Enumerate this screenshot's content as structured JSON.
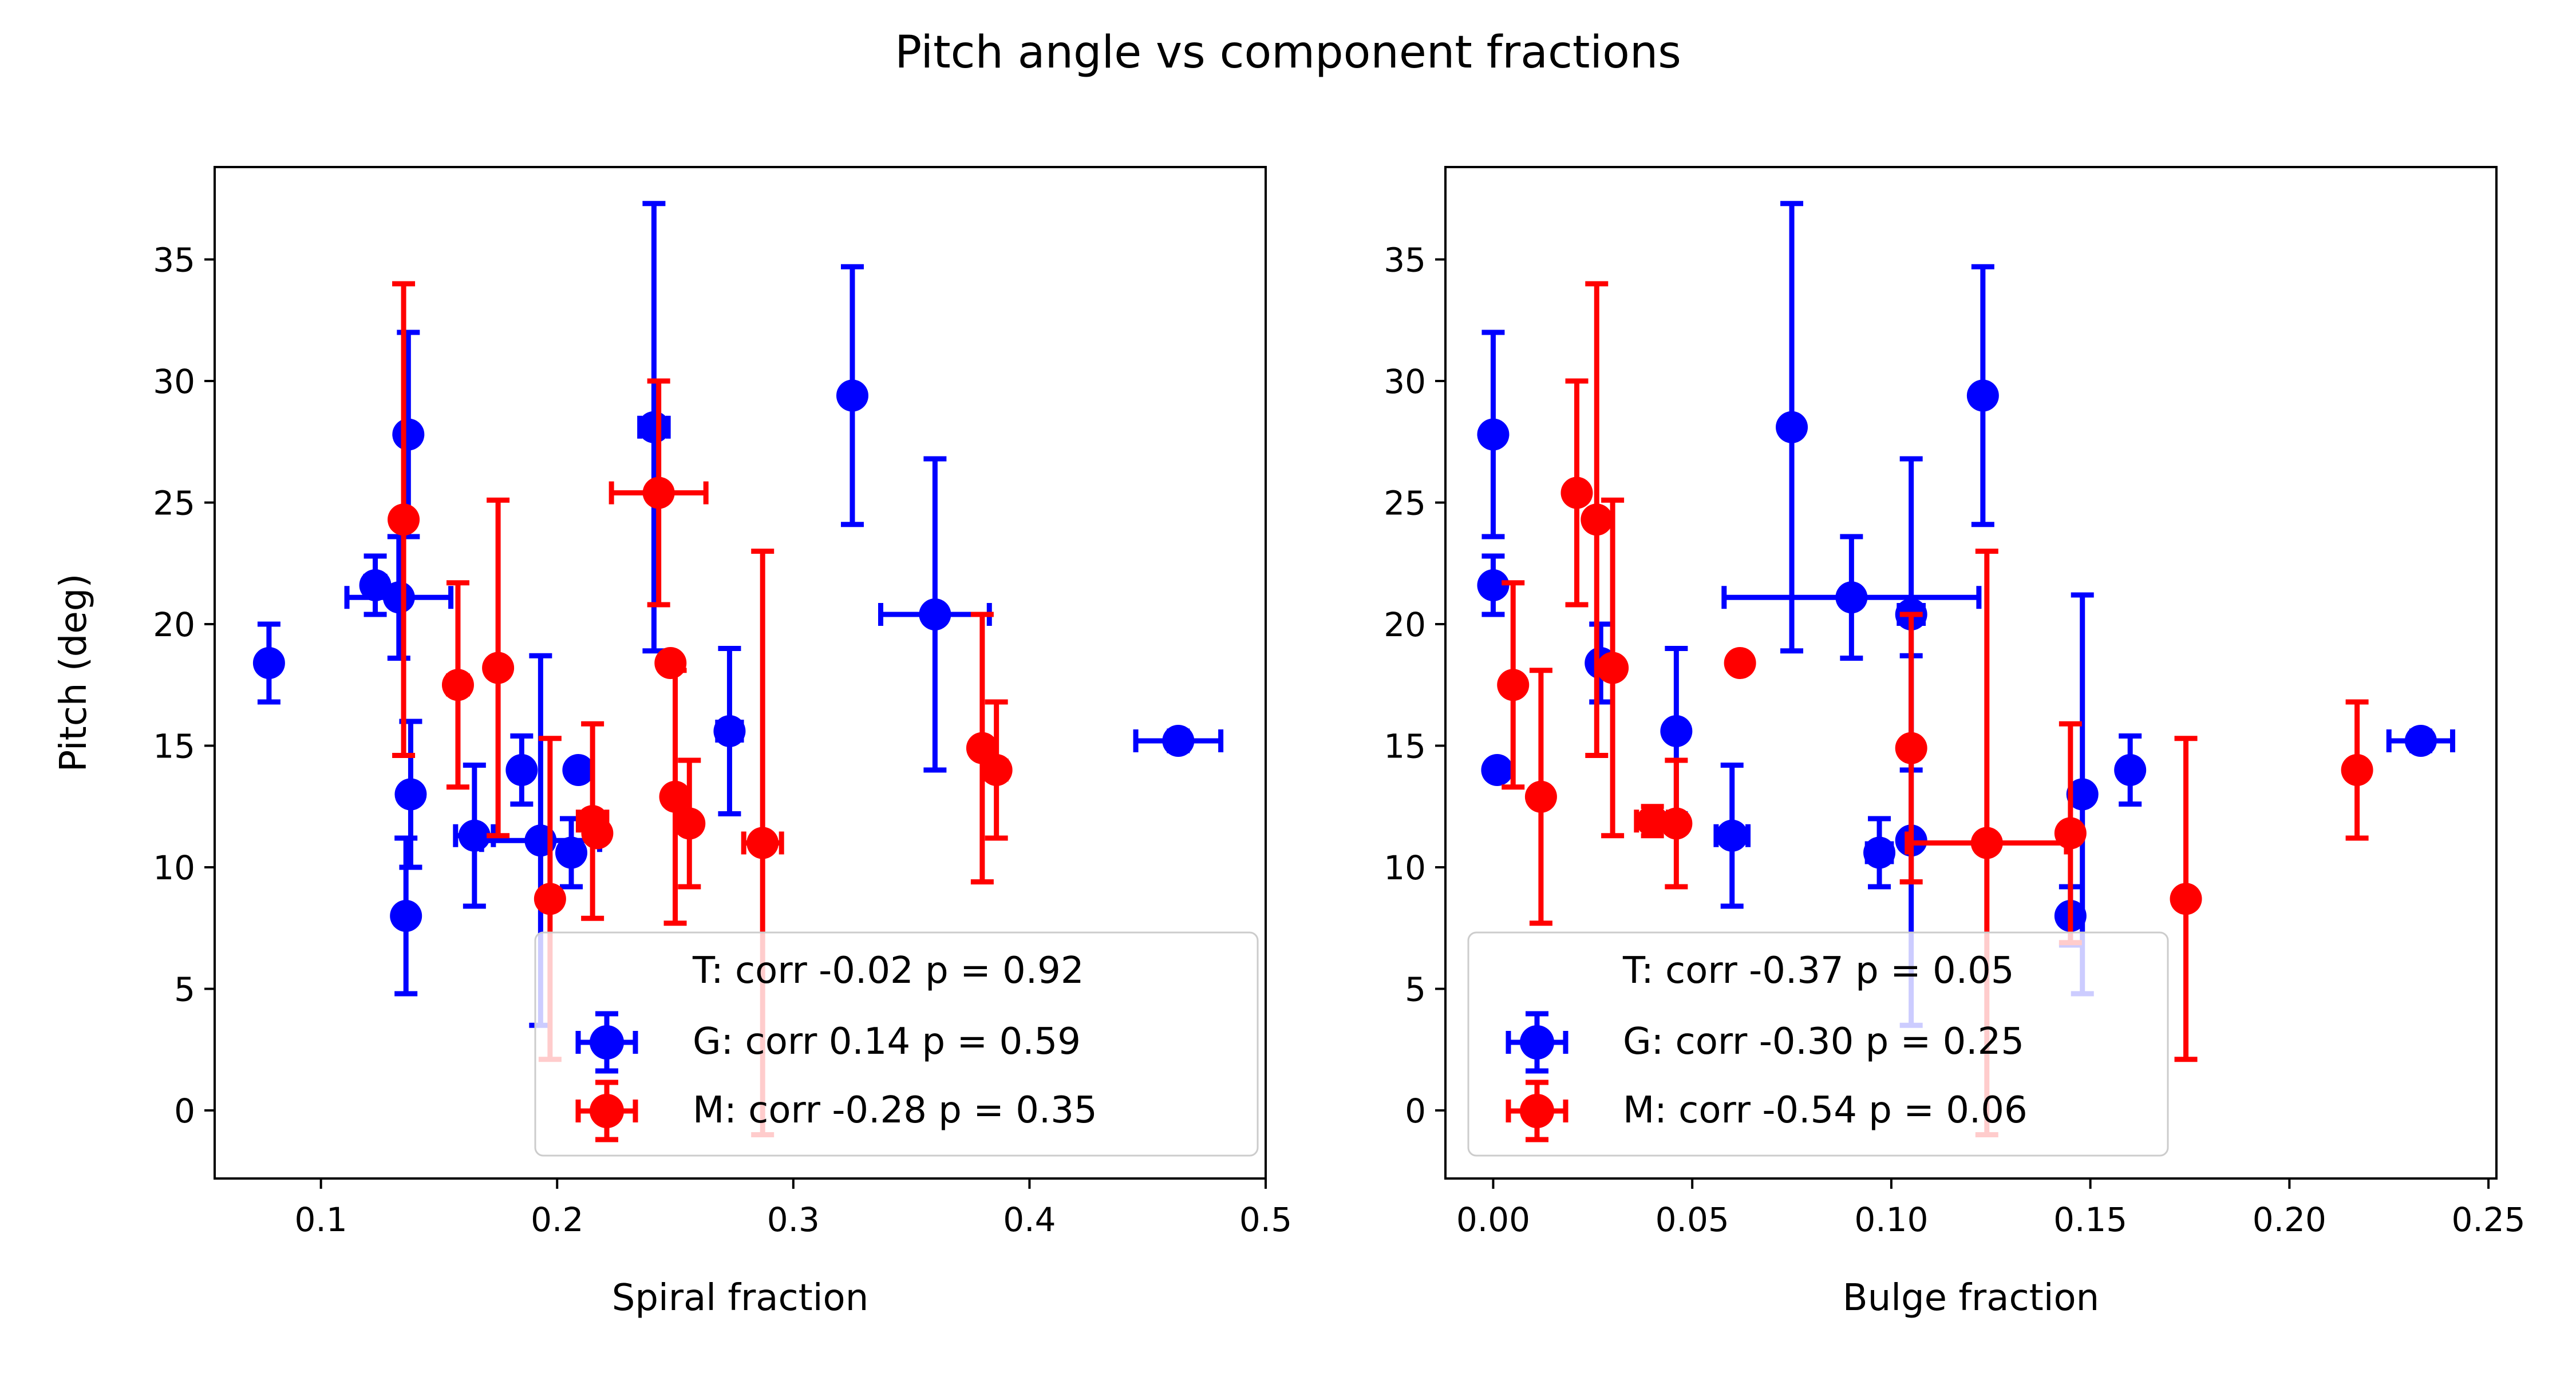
{
  "chart_data": {
    "suptitle": "Pitch angle vs component fractions",
    "panels": [
      {
        "type": "scatter",
        "xlabel": "Spiral fraction",
        "ylabel": "Pitch (deg)",
        "xlim": [
          0.055,
          0.5
        ],
        "ylim": [
          -2.8,
          38.8
        ],
        "xticks": [
          0.1,
          0.2,
          0.3,
          0.4,
          0.5
        ],
        "xtick_labels": [
          "0.1",
          "0.2",
          "0.3",
          "0.4",
          "0.5"
        ],
        "yticks": [
          0,
          5,
          10,
          15,
          20,
          25,
          30,
          35
        ],
        "ytick_labels": [
          "0",
          "5",
          "10",
          "15",
          "20",
          "25",
          "30",
          "35"
        ],
        "legend": {
          "placement": "lower-right",
          "entries": [
            {
              "label": "T: corr -0.02 p = 0.92",
              "marker": "none"
            },
            {
              "label": "G: corr 0.14 p = 0.59",
              "color": "#0000ff"
            },
            {
              "label": "M: corr -0.28 p = 0.35",
              "color": "#ff0000"
            }
          ]
        },
        "series": [
          {
            "name": "G",
            "color": "#0000ff",
            "points": [
              {
                "x": 0.078,
                "y": 18.4,
                "xerr": 0.0,
                "yerr": 1.6
              },
              {
                "x": 0.123,
                "y": 21.6,
                "xerr": 0.004,
                "yerr": 1.2
              },
              {
                "x": 0.133,
                "y": 21.1,
                "xerr": 0.022,
                "yerr": 2.5
              },
              {
                "x": 0.137,
                "y": 27.8,
                "xerr": 0.003,
                "yerr": 4.2
              },
              {
                "x": 0.138,
                "y": 13.0,
                "xerr": 0.0,
                "yerr": 3.0
              },
              {
                "x": 0.136,
                "y": 8.0,
                "xerr": 0.0,
                "yerr": 3.2
              },
              {
                "x": 0.165,
                "y": 11.3,
                "xerr": 0.008,
                "yerr": 2.9
              },
              {
                "x": 0.185,
                "y": 14.0,
                "xerr": 0.0,
                "yerr": 1.4
              },
              {
                "x": 0.193,
                "y": 11.1,
                "xerr": 0.025,
                "yerr": 7.6
              },
              {
                "x": 0.206,
                "y": 10.6,
                "xerr": 0.0,
                "yerr": 1.4
              },
              {
                "x": 0.209,
                "y": 14.0,
                "xerr": 0.0,
                "yerr": 0.0
              },
              {
                "x": 0.241,
                "y": 28.1,
                "xerr": 0.006,
                "yerr": 9.2
              },
              {
                "x": 0.273,
                "y": 15.6,
                "xerr": 0.005,
                "yerr": 3.4
              },
              {
                "x": 0.325,
                "y": 29.4,
                "xerr": 0.0,
                "yerr": 5.3
              },
              {
                "x": 0.36,
                "y": 20.4,
                "xerr": 0.023,
                "yerr": 6.4
              },
              {
                "x": 0.463,
                "y": 15.2,
                "xerr": 0.018,
                "yerr": 0.4
              }
            ]
          },
          {
            "name": "M",
            "color": "#ff0000",
            "points": [
              {
                "x": 0.135,
                "y": 24.3,
                "xerr": 0.0,
                "yerr": 9.7
              },
              {
                "x": 0.158,
                "y": 17.5,
                "xerr": 0.004,
                "yerr": 4.2
              },
              {
                "x": 0.175,
                "y": 18.2,
                "xerr": 0.0,
                "yerr": 6.9
              },
              {
                "x": 0.197,
                "y": 8.7,
                "xerr": 0.0,
                "yerr": 6.6
              },
              {
                "x": 0.215,
                "y": 11.9,
                "xerr": 0.006,
                "yerr": 4.0
              },
              {
                "x": 0.217,
                "y": 11.4,
                "xerr": 0.0,
                "yerr": 0.0
              },
              {
                "x": 0.243,
                "y": 25.4,
                "xerr": 0.02,
                "yerr": 4.6
              },
              {
                "x": 0.248,
                "y": 18.4,
                "xerr": 0.0,
                "yerr": 0.0
              },
              {
                "x": 0.25,
                "y": 12.9,
                "xerr": 0.0,
                "yerr": 5.2
              },
              {
                "x": 0.256,
                "y": 11.8,
                "xerr": 0.0,
                "yerr": 2.6
              },
              {
                "x": 0.287,
                "y": 11.0,
                "xerr": 0.008,
                "yerr": 12.0
              },
              {
                "x": 0.38,
                "y": 14.9,
                "xerr": 0.0,
                "yerr": 5.5
              },
              {
                "x": 0.386,
                "y": 14.0,
                "xerr": 0.004,
                "yerr": 2.8
              }
            ]
          }
        ]
      },
      {
        "type": "scatter",
        "xlabel": "Bulge fraction",
        "ylabel": "",
        "xlim": [
          -0.012,
          0.252
        ],
        "ylim": [
          -2.8,
          38.8
        ],
        "xticks": [
          0.0,
          0.05,
          0.1,
          0.15,
          0.2,
          0.25
        ],
        "xtick_labels": [
          "0.00",
          "0.05",
          "0.10",
          "0.15",
          "0.20",
          "0.25"
        ],
        "yticks": [
          0,
          5,
          10,
          15,
          20,
          25,
          30,
          35
        ],
        "ytick_labels": [
          "0",
          "5",
          "10",
          "15",
          "20",
          "25",
          "30",
          "35"
        ],
        "legend": {
          "placement": "lower-left",
          "entries": [
            {
              "label": "T: corr -0.37 p = 0.05",
              "marker": "none"
            },
            {
              "label": "G: corr -0.30 p = 0.25",
              "color": "#0000ff"
            },
            {
              "label": "M: corr -0.54 p = 0.06",
              "color": "#ff0000"
            }
          ]
        },
        "series": [
          {
            "name": "G",
            "color": "#0000ff",
            "points": [
              {
                "x": 0.0,
                "y": 27.8,
                "xerr": 0.0,
                "yerr": 4.2
              },
              {
                "x": 0.0,
                "y": 21.6,
                "xerr": 0.0,
                "yerr": 1.2
              },
              {
                "x": 0.001,
                "y": 14.0,
                "xerr": 0.0,
                "yerr": 0.0
              },
              {
                "x": 0.027,
                "y": 18.4,
                "xerr": 0.0,
                "yerr": 1.6
              },
              {
                "x": 0.046,
                "y": 15.6,
                "xerr": 0.0,
                "yerr": 3.4
              },
              {
                "x": 0.06,
                "y": 11.3,
                "xerr": 0.004,
                "yerr": 2.9
              },
              {
                "x": 0.075,
                "y": 28.1,
                "xerr": 0.0,
                "yerr": 9.2
              },
              {
                "x": 0.09,
                "y": 21.1,
                "xerr": 0.032,
                "yerr": 2.5
              },
              {
                "x": 0.097,
                "y": 10.6,
                "xerr": 0.003,
                "yerr": 1.4
              },
              {
                "x": 0.105,
                "y": 20.4,
                "xerr": 0.003,
                "yerr": 6.4
              },
              {
                "x": 0.105,
                "y": 11.1,
                "xerr": 0.0,
                "yerr": 7.6
              },
              {
                "x": 0.123,
                "y": 29.4,
                "xerr": 0.0,
                "yerr": 5.3
              },
              {
                "x": 0.145,
                "y": 8.0,
                "xerr": 0.0,
                "yerr": 1.2
              },
              {
                "x": 0.148,
                "y": 13.0,
                "xerr": 0.0,
                "yerr": 8.2
              },
              {
                "x": 0.16,
                "y": 14.0,
                "xerr": 0.0,
                "yerr": 1.4
              },
              {
                "x": 0.233,
                "y": 15.2,
                "xerr": 0.008,
                "yerr": 0.4
              }
            ]
          },
          {
            "name": "M",
            "color": "#ff0000",
            "points": [
              {
                "x": 0.005,
                "y": 17.5,
                "xerr": 0.0,
                "yerr": 4.2
              },
              {
                "x": 0.012,
                "y": 12.9,
                "xerr": 0.0,
                "yerr": 5.2
              },
              {
                "x": 0.021,
                "y": 25.4,
                "xerr": 0.0,
                "yerr": 4.6
              },
              {
                "x": 0.026,
                "y": 24.3,
                "xerr": 0.0,
                "yerr": 9.7
              },
              {
                "x": 0.03,
                "y": 18.2,
                "xerr": 0.0,
                "yerr": 6.9
              },
              {
                "x": 0.04,
                "y": 11.9,
                "xerr": 0.004,
                "yerr": 0.6
              },
              {
                "x": 0.046,
                "y": 11.8,
                "xerr": 0.0,
                "yerr": 2.6
              },
              {
                "x": 0.062,
                "y": 18.4,
                "xerr": 0.0,
                "yerr": 0.0
              },
              {
                "x": 0.105,
                "y": 14.9,
                "xerr": 0.0,
                "yerr": 5.5
              },
              {
                "x": 0.124,
                "y": 11.0,
                "xerr": 0.02,
                "yerr": 12.0
              },
              {
                "x": 0.145,
                "y": 11.4,
                "xerr": 0.0,
                "yerr": 4.5
              },
              {
                "x": 0.174,
                "y": 8.7,
                "xerr": 0.0,
                "yerr": 6.6
              },
              {
                "x": 0.217,
                "y": 14.0,
                "xerr": 0.0,
                "yerr": 2.8
              }
            ]
          }
        ]
      }
    ]
  }
}
